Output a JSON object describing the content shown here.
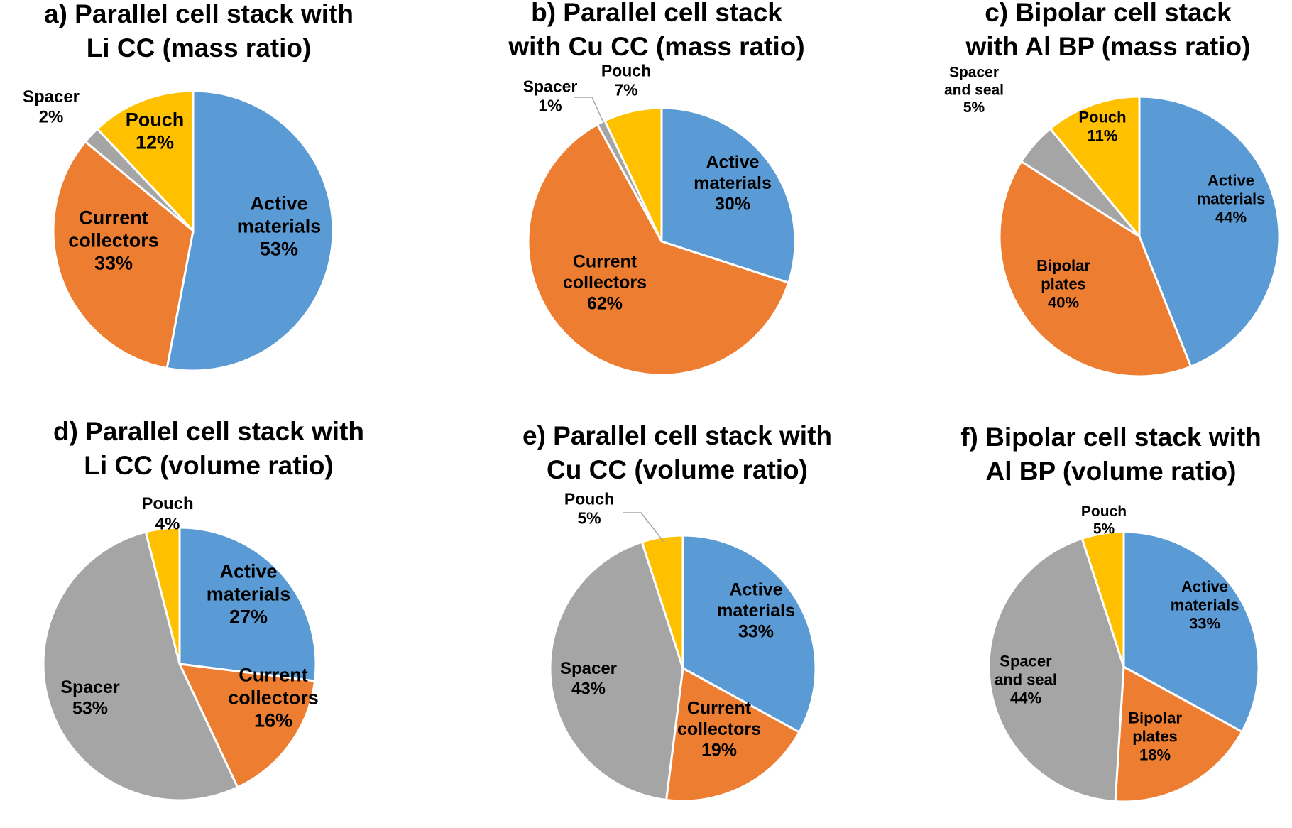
{
  "colors": {
    "active": "#5b9bd5",
    "cc": "#ed7d31",
    "spacer": "#a5a5a5",
    "pouch": "#ffc000"
  },
  "chart_data": [
    {
      "type": "pie",
      "title": [
        "a) Parallel cell stack with",
        "Li CC (mass ratio)"
      ],
      "slices": [
        {
          "key": "active",
          "label": [
            "Active",
            "materials",
            "53%"
          ],
          "value": 53
        },
        {
          "key": "cc",
          "label": [
            "Current",
            "collectors",
            "33%"
          ],
          "value": 33
        },
        {
          "key": "spacer",
          "label": [
            "Spacer",
            "2%"
          ],
          "value": 2
        },
        {
          "key": "pouch",
          "label": [
            "Pouch",
            "12%"
          ],
          "value": 12
        }
      ]
    },
    {
      "type": "pie",
      "title": [
        "b) Parallel cell stack",
        "with Cu CC (mass ratio)"
      ],
      "slices": [
        {
          "key": "active",
          "label": [
            "Active",
            "materials",
            "30%"
          ],
          "value": 30
        },
        {
          "key": "cc",
          "label": [
            "Current",
            "collectors",
            "62%"
          ],
          "value": 62
        },
        {
          "key": "spacer",
          "label": [
            "Spacer",
            "1%"
          ],
          "value": 1
        },
        {
          "key": "pouch",
          "label": [
            "Pouch",
            "7%"
          ],
          "value": 7
        }
      ]
    },
    {
      "type": "pie",
      "title": [
        "c) Bipolar cell stack",
        "with Al BP (mass ratio)"
      ],
      "slices": [
        {
          "key": "active",
          "label": [
            "Active",
            "materials",
            "44%"
          ],
          "value": 44
        },
        {
          "key": "cc",
          "label": [
            "Bipolar",
            "plates",
            "40%"
          ],
          "value": 40
        },
        {
          "key": "spacer",
          "label": [
            "Spacer",
            "and seal",
            "5%"
          ],
          "value": 5
        },
        {
          "key": "pouch",
          "label": [
            "Pouch",
            "11%"
          ],
          "value": 11
        }
      ]
    },
    {
      "type": "pie",
      "title": [
        "d) Parallel cell stack with",
        "Li CC (volume ratio)"
      ],
      "slices": [
        {
          "key": "active",
          "label": [
            "Active",
            "materials",
            "27%"
          ],
          "value": 27
        },
        {
          "key": "cc",
          "label": [
            "Current",
            "collectors",
            "16%"
          ],
          "value": 16
        },
        {
          "key": "spacer",
          "label": [
            "Spacer",
            "53%"
          ],
          "value": 53
        },
        {
          "key": "pouch",
          "label": [
            "Pouch",
            "4%"
          ],
          "value": 4
        }
      ]
    },
    {
      "type": "pie",
      "title": [
        "e) Parallel cell stack with",
        "Cu CC (volume ratio)"
      ],
      "slices": [
        {
          "key": "active",
          "label": [
            "Active",
            "materials",
            "33%"
          ],
          "value": 33
        },
        {
          "key": "cc",
          "label": [
            "Current",
            "collectors",
            "19%"
          ],
          "value": 19
        },
        {
          "key": "spacer",
          "label": [
            "Spacer",
            "43%"
          ],
          "value": 43
        },
        {
          "key": "pouch",
          "label": [
            "Pouch",
            "5%"
          ],
          "value": 5
        }
      ]
    },
    {
      "type": "pie",
      "title": [
        "f) Bipolar cell stack with",
        "Al BP (volume ratio)"
      ],
      "slices": [
        {
          "key": "active",
          "label": [
            "Active",
            "materials",
            "33%"
          ],
          "value": 33
        },
        {
          "key": "cc",
          "label": [
            "Bipolar",
            "plates",
            "18%"
          ],
          "value": 18
        },
        {
          "key": "spacer",
          "label": [
            "Spacer",
            "and seal",
            "44%"
          ],
          "value": 44
        },
        {
          "key": "pouch",
          "label": [
            "Pouch",
            "5%"
          ],
          "value": 5
        }
      ]
    }
  ]
}
